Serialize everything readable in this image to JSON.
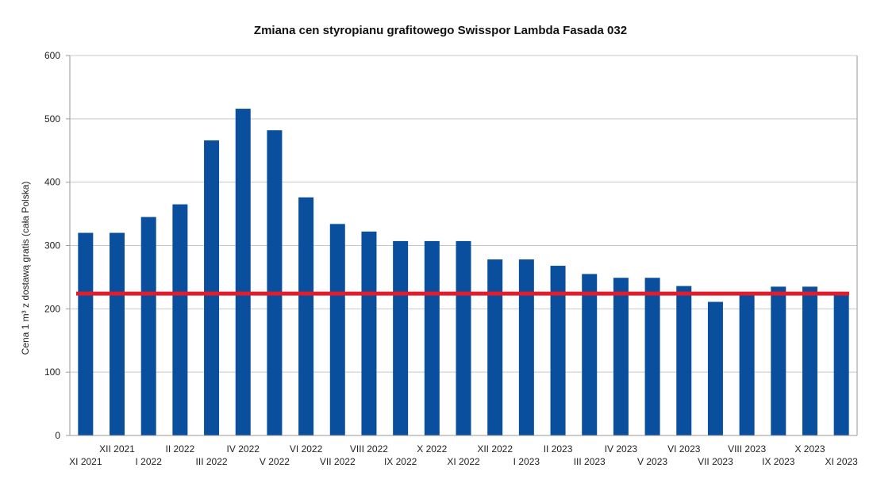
{
  "chart_data": {
    "type": "bar",
    "title": "Zmiana cen styropianu grafitowego Swisspor Lambda Fasada 032",
    "xlabel": "",
    "ylabel": "Cena 1 m³ z dostawą gratis (cała Polska)",
    "ylim": [
      0,
      600
    ],
    "yticks": [
      0,
      100,
      200,
      300,
      400,
      500,
      600
    ],
    "grid": true,
    "categories": [
      "XI 2021",
      "XII 2021",
      "I 2022",
      "II 2022",
      "III 2022",
      "IV 2022",
      "V 2022",
      "VI 2022",
      "VII 2022",
      "VIII 2022",
      "IX 2022",
      "X 2022",
      "XI 2022",
      "XII 2022",
      "I 2023",
      "II 2023",
      "III 2023",
      "IV 2023",
      "V 2023",
      "VI 2023",
      "VII 2023",
      "VIII 2023",
      "IX 2023",
      "X 2023",
      "XI 2023"
    ],
    "values": [
      320,
      320,
      345,
      365,
      466,
      516,
      482,
      376,
      334,
      322,
      307,
      307,
      307,
      278,
      278,
      268,
      255,
      249,
      249,
      236,
      211,
      222,
      235,
      235,
      222
    ],
    "reference_line": {
      "value": 224
    },
    "colors": {
      "bar": "#0a4f9e",
      "reference_line": "#e31c2b"
    }
  }
}
